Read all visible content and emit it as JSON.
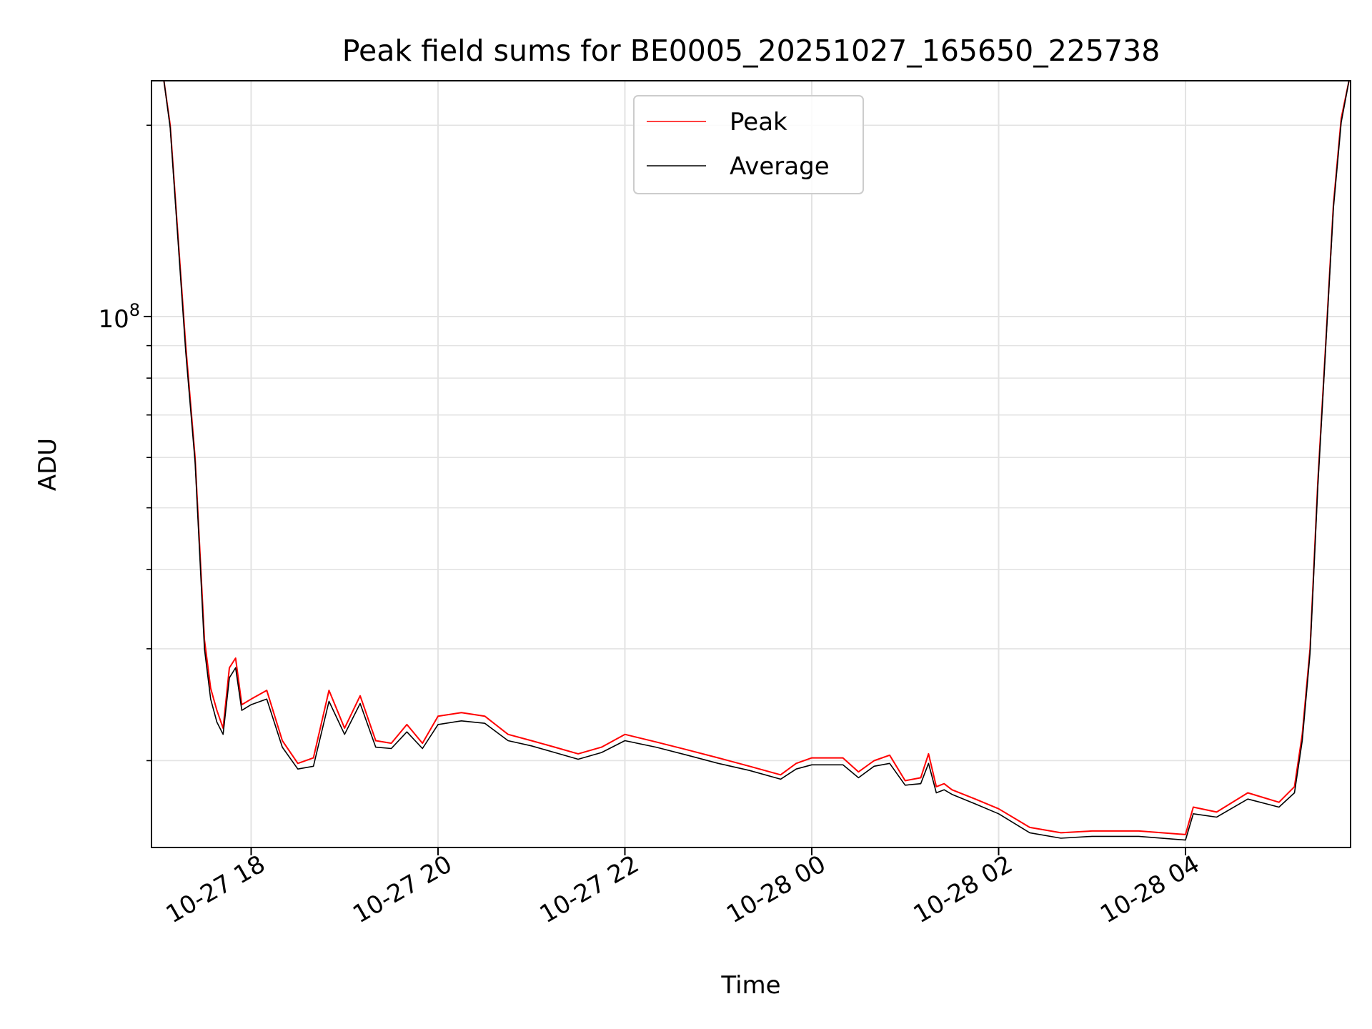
{
  "chart_data": {
    "type": "line",
    "title": "Peak field sums for BE0005_20251027_165650_225738",
    "xlabel": "Time",
    "ylabel": "ADU",
    "y_scale": "log",
    "ylim": [
      14600000,
      235000000
    ],
    "xlim": [
      "2025-10-27 16:56",
      "2025-10-28 05:46"
    ],
    "grid": true,
    "legend_position": "upper center",
    "y_major_tick": {
      "value": 100000000,
      "label_base": "10",
      "label_exp": "8"
    },
    "y_minor_ticks": [
      20000000,
      30000000,
      40000000,
      50000000,
      60000000,
      70000000,
      80000000,
      90000000,
      200000000
    ],
    "x_ticks": [
      {
        "time": "2025-10-27 18:00",
        "label": "10-27 18"
      },
      {
        "time": "2025-10-27 20:00",
        "label": "10-27 20"
      },
      {
        "time": "2025-10-27 22:00",
        "label": "10-27 22"
      },
      {
        "time": "2025-10-28 00:00",
        "label": "10-28 00"
      },
      {
        "time": "2025-10-28 02:00",
        "label": "10-28 02"
      },
      {
        "time": "2025-10-28 04:00",
        "label": "10-28 04"
      }
    ],
    "series": [
      {
        "name": "Peak",
        "color": "#ff0000",
        "x": [
          "2025-10-27 17:04",
          "2025-10-27 17:08",
          "2025-10-27 17:12",
          "2025-10-27 17:18",
          "2025-10-27 17:24",
          "2025-10-27 17:30",
          "2025-10-27 17:34",
          "2025-10-27 17:38",
          "2025-10-27 17:42",
          "2025-10-27 17:46",
          "2025-10-27 17:50",
          "2025-10-27 17:54",
          "2025-10-27 18:00",
          "2025-10-27 18:10",
          "2025-10-27 18:20",
          "2025-10-27 18:30",
          "2025-10-27 18:40",
          "2025-10-27 18:50",
          "2025-10-27 19:00",
          "2025-10-27 19:10",
          "2025-10-27 19:20",
          "2025-10-27 19:30",
          "2025-10-27 19:40",
          "2025-10-27 19:50",
          "2025-10-27 20:00",
          "2025-10-27 20:15",
          "2025-10-27 20:30",
          "2025-10-27 20:45",
          "2025-10-27 21:00",
          "2025-10-27 21:15",
          "2025-10-27 21:30",
          "2025-10-27 21:45",
          "2025-10-27 22:00",
          "2025-10-27 22:20",
          "2025-10-27 22:40",
          "2025-10-27 23:00",
          "2025-10-27 23:20",
          "2025-10-27 23:40",
          "2025-10-27 23:50",
          "2025-10-28 00:00",
          "2025-10-28 00:20",
          "2025-10-28 00:30",
          "2025-10-28 00:40",
          "2025-10-28 00:50",
          "2025-10-28 01:00",
          "2025-10-28 01:10",
          "2025-10-28 01:15",
          "2025-10-28 01:20",
          "2025-10-28 01:25",
          "2025-10-28 01:30",
          "2025-10-28 01:45",
          "2025-10-28 02:00",
          "2025-10-28 02:20",
          "2025-10-28 02:40",
          "2025-10-28 03:00",
          "2025-10-28 03:30",
          "2025-10-28 04:00",
          "2025-10-28 04:05",
          "2025-10-28 04:20",
          "2025-10-28 04:40",
          "2025-10-28 05:00",
          "2025-10-28 05:10",
          "2025-10-28 05:15",
          "2025-10-28 05:20",
          "2025-10-28 05:25",
          "2025-10-28 05:30",
          "2025-10-28 05:35",
          "2025-10-28 05:40",
          "2025-10-28 05:45"
        ],
        "y": [
          235000000,
          200000000,
          145000000,
          90000000,
          60000000,
          31000000,
          26000000,
          24000000,
          22500000,
          28000000,
          29000000,
          24500000,
          25000000,
          25800000,
          21500000,
          19800000,
          20200000,
          25800000,
          22500000,
          25300000,
          21500000,
          21300000,
          22800000,
          21300000,
          23500000,
          23800000,
          23500000,
          22000000,
          21500000,
          21000000,
          20500000,
          21000000,
          22000000,
          21400000,
          20800000,
          20200000,
          19600000,
          19000000,
          19800000,
          20200000,
          20200000,
          19200000,
          20000000,
          20400000,
          18600000,
          18800000,
          20500000,
          18200000,
          18400000,
          18000000,
          17400000,
          16800000,
          15700000,
          15400000,
          15500000,
          15500000,
          15300000,
          16900000,
          16600000,
          17800000,
          17200000,
          18200000,
          22000000,
          30000000,
          55000000,
          90000000,
          150000000,
          205000000,
          235000000
        ]
      },
      {
        "name": "Average",
        "color": "#000000",
        "x": [
          "2025-10-27 17:04",
          "2025-10-27 17:08",
          "2025-10-27 17:12",
          "2025-10-27 17:18",
          "2025-10-27 17:24",
          "2025-10-27 17:30",
          "2025-10-27 17:34",
          "2025-10-27 17:38",
          "2025-10-27 17:42",
          "2025-10-27 17:46",
          "2025-10-27 17:50",
          "2025-10-27 17:54",
          "2025-10-27 18:00",
          "2025-10-27 18:10",
          "2025-10-27 18:20",
          "2025-10-27 18:30",
          "2025-10-27 18:40",
          "2025-10-27 18:50",
          "2025-10-27 19:00",
          "2025-10-27 19:10",
          "2025-10-27 19:20",
          "2025-10-27 19:30",
          "2025-10-27 19:40",
          "2025-10-27 19:50",
          "2025-10-27 20:00",
          "2025-10-27 20:15",
          "2025-10-27 20:30",
          "2025-10-27 20:45",
          "2025-10-27 21:00",
          "2025-10-27 21:15",
          "2025-10-27 21:30",
          "2025-10-27 21:45",
          "2025-10-27 22:00",
          "2025-10-27 22:20",
          "2025-10-27 22:40",
          "2025-10-27 23:00",
          "2025-10-27 23:20",
          "2025-10-27 23:40",
          "2025-10-27 23:50",
          "2025-10-28 00:00",
          "2025-10-28 00:20",
          "2025-10-28 00:30",
          "2025-10-28 00:40",
          "2025-10-28 00:50",
          "2025-10-28 01:00",
          "2025-10-28 01:10",
          "2025-10-28 01:15",
          "2025-10-28 01:20",
          "2025-10-28 01:25",
          "2025-10-28 01:30",
          "2025-10-28 01:45",
          "2025-10-28 02:00",
          "2025-10-28 02:20",
          "2025-10-28 02:40",
          "2025-10-28 03:00",
          "2025-10-28 03:30",
          "2025-10-28 04:00",
          "2025-10-28 04:05",
          "2025-10-28 04:20",
          "2025-10-28 04:40",
          "2025-10-28 05:00",
          "2025-10-28 05:10",
          "2025-10-28 05:15",
          "2025-10-28 05:20",
          "2025-10-28 05:25",
          "2025-10-28 05:30",
          "2025-10-28 05:35",
          "2025-10-28 05:40",
          "2025-10-28 05:45"
        ],
        "y": [
          235000000,
          198000000,
          143000000,
          88000000,
          59000000,
          30000000,
          25000000,
          23000000,
          22000000,
          27000000,
          28000000,
          24000000,
          24500000,
          25000000,
          21000000,
          19400000,
          19600000,
          24800000,
          22000000,
          24600000,
          21000000,
          20900000,
          22200000,
          20900000,
          22800000,
          23100000,
          22900000,
          21500000,
          21100000,
          20600000,
          20100000,
          20600000,
          21500000,
          21000000,
          20400000,
          19800000,
          19300000,
          18700000,
          19400000,
          19700000,
          19700000,
          18800000,
          19600000,
          19800000,
          18300000,
          18400000,
          19800000,
          17800000,
          18000000,
          17700000,
          17100000,
          16500000,
          15400000,
          15100000,
          15200000,
          15200000,
          15000000,
          16500000,
          16300000,
          17400000,
          16900000,
          17800000,
          21500000,
          29500000,
          54000000,
          89000000,
          148000000,
          202000000,
          235000000
        ]
      }
    ]
  }
}
